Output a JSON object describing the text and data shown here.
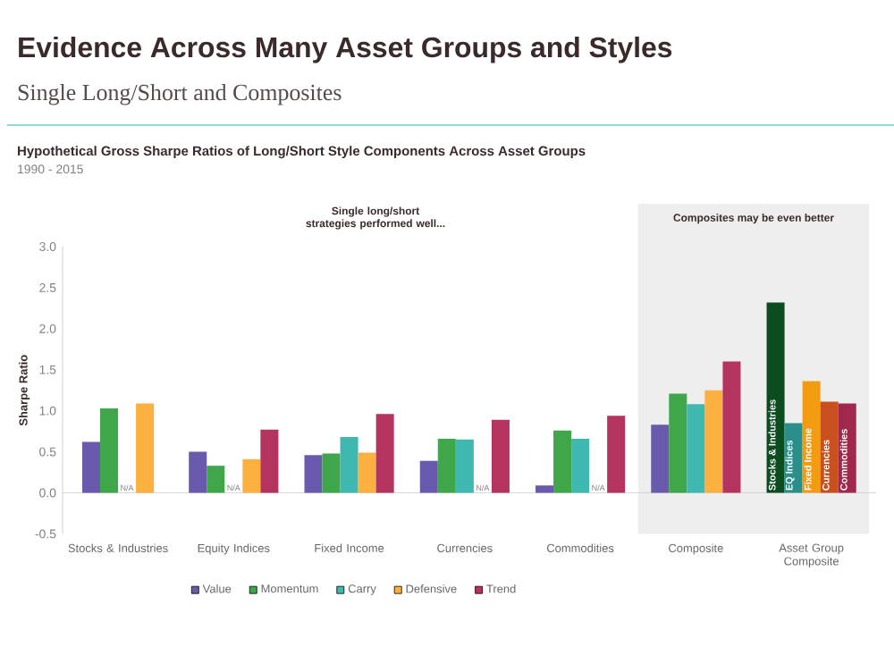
{
  "chart_data": {
    "type": "bar",
    "title": "Evidence Across Many Asset Groups and Styles",
    "subtitle": "Single Long/Short and Composites",
    "ylabel": "Sharpe Ratio",
    "annotations": [
      "Hypothetical Gross Sharpe Ratios of Long/Short Style Components Across Asset Groups",
      "1990 - 2015",
      "Single long/short strategies performed well..."
    ],
    "categories": [
      "Stocks & Industries",
      "Equity Indices",
      "Fixed Income",
      "Currencies",
      "Commodities",
      "Composite",
      "Asset Group Composite"
    ],
    "series": [
      {
        "name": "Value",
        "color": "#6a5aad",
        "values": [
          0.62,
          0.5,
          0.46,
          0.39,
          0.09,
          0.83,
          null
        ]
      },
      {
        "name": "Momentum",
        "color": "#3fa64a",
        "values": [
          1.03,
          0.33,
          0.48,
          0.66,
          0.76,
          1.21,
          null
        ]
      },
      {
        "name": "Carry",
        "color": "#3fb8b0",
        "values": [
          null,
          null,
          0.68,
          0.65,
          0.66,
          1.08,
          null
        ],
        "value_labels": [
          "N/A",
          "N/A",
          null,
          null,
          null,
          null,
          null
        ]
      },
      {
        "name": "Defensive",
        "color": "#fbb040",
        "values": [
          1.09,
          0.41,
          0.49,
          null,
          null,
          1.25,
          null
        ],
        "value_labels": [
          null,
          null,
          null,
          "N/A",
          "N/A",
          null,
          null
        ]
      },
      {
        "name": "Trend",
        "color": "#b5345f",
        "values": [
          null,
          0.77,
          0.96,
          0.89,
          0.94,
          1.6,
          null
        ]
      },
      {
        "name": "Stocks & Industries",
        "color": "#0b4d1e",
        "values": [
          null,
          null,
          null,
          null,
          null,
          null,
          2.32
        ]
      },
      {
        "name": "EQ Indices",
        "color": "#2a8f8a",
        "values": [
          null,
          null,
          null,
          null,
          null,
          null,
          0.85
        ]
      },
      {
        "name": "Fixed Income",
        "color": "#f39c12",
        "values": [
          null,
          null,
          null,
          null,
          null,
          null,
          1.36
        ]
      },
      {
        "name": "Currencies",
        "color": "#c8501e",
        "values": [
          null,
          null,
          null,
          null,
          null,
          null,
          1.11
        ]
      },
      {
        "name": "Commodities",
        "color": "#a0284f",
        "values": [
          null,
          null,
          null,
          null,
          null,
          null,
          1.09
        ]
      }
    ],
    "ylim": [
      -0.5,
      3.0
    ],
    "yticks": [
      {
        "value": -0.5,
        "label": "-0.5"
      },
      {
        "value": 0,
        "label": "0.0"
      },
      {
        "value": 0.5,
        "label": "0.5"
      },
      {
        "value": 1,
        "label": "1.0"
      },
      {
        "value": 1.5,
        "label": "1.5"
      },
      {
        "value": 2,
        "label": "2.0"
      },
      {
        "value": 2.5,
        "label": "2.5"
      },
      {
        "value": 3,
        "label": "3.0"
      }
    ],
    "bands": [
      {
        "axis": "x",
        "from": "Composite",
        "to": "Asset Group Composite",
        "label": "Composites may be even better",
        "color": "#eeeeee"
      }
    ],
    "legend": "bottom"
  }
}
